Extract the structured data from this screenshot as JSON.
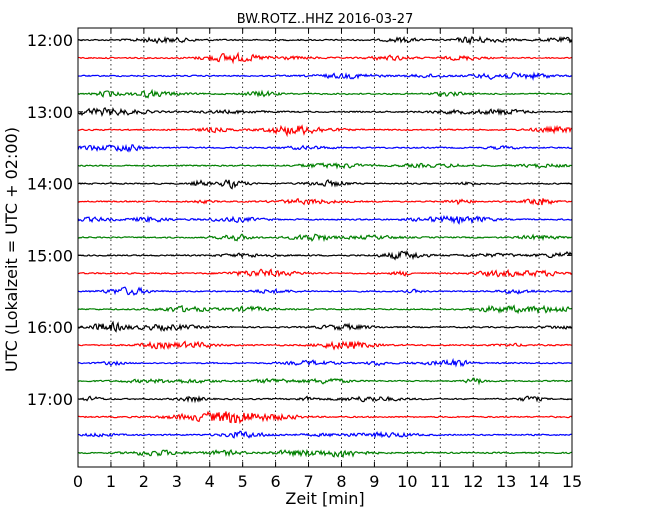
{
  "chart_data": {
    "type": "line",
    "title": "BW.ROTZ..HHZ 2016-03-27",
    "xlabel": "Zeit  [min]",
    "ylabel": "UTC (Lokalzeit = UTC + 02:00)",
    "xlim": [
      0,
      15
    ],
    "x_ticks": [
      "0",
      "1",
      "2",
      "3",
      "4",
      "5",
      "6",
      "7",
      "8",
      "9",
      "10",
      "11",
      "12",
      "13",
      "14",
      "15"
    ],
    "y_ticks": [
      "12:00",
      "13:00",
      "14:00",
      "15:00",
      "16:00",
      "17:00"
    ],
    "grid": "vertical dotted",
    "trace_minutes": 15,
    "trace_start": "12:00",
    "trace_count": 24,
    "trace_colors": [
      "#000000",
      "#ff0000",
      "#0000ff",
      "#008000"
    ]
  }
}
